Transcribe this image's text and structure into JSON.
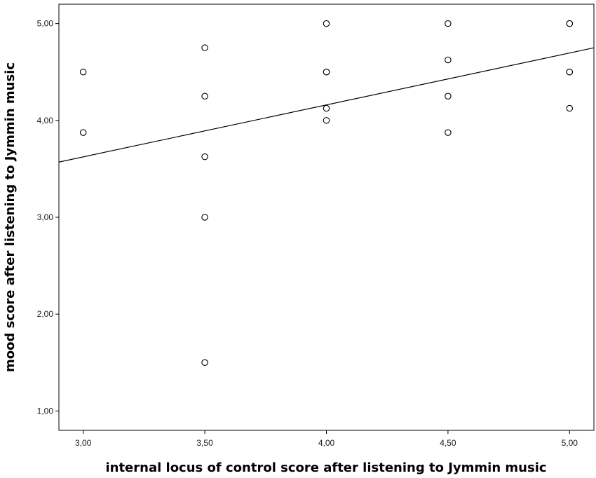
{
  "chart_data": {
    "type": "scatter",
    "xlabel": "internal locus of control score after listening to Jymmin music",
    "ylabel": "mood score after listening to Jymmin music",
    "xlim": [
      2.9,
      5.1
    ],
    "ylim": [
      0.8,
      5.2
    ],
    "x_ticks": [
      {
        "value": 3.0,
        "label": "3,00"
      },
      {
        "value": 3.5,
        "label": "3,50"
      },
      {
        "value": 4.0,
        "label": "4,00"
      },
      {
        "value": 4.5,
        "label": "4,50"
      },
      {
        "value": 5.0,
        "label": "5,00"
      }
    ],
    "y_ticks": [
      {
        "value": 1.0,
        "label": "1,00"
      },
      {
        "value": 2.0,
        "label": "2,00"
      },
      {
        "value": 3.0,
        "label": "3,00"
      },
      {
        "value": 4.0,
        "label": "4,00"
      },
      {
        "value": 5.0,
        "label": "5,00"
      }
    ],
    "grid": false,
    "points": [
      {
        "x": 3.0,
        "y": 4.5
      },
      {
        "x": 3.0,
        "y": 3.875
      },
      {
        "x": 3.5,
        "y": 4.75
      },
      {
        "x": 3.5,
        "y": 4.25
      },
      {
        "x": 3.5,
        "y": 3.625
      },
      {
        "x": 3.5,
        "y": 3.0
      },
      {
        "x": 3.5,
        "y": 1.5
      },
      {
        "x": 4.0,
        "y": 5.0
      },
      {
        "x": 4.0,
        "y": 4.5
      },
      {
        "x": 4.0,
        "y": 4.5
      },
      {
        "x": 4.0,
        "y": 4.125
      },
      {
        "x": 4.0,
        "y": 4.0
      },
      {
        "x": 4.5,
        "y": 5.0
      },
      {
        "x": 4.5,
        "y": 4.625
      },
      {
        "x": 4.5,
        "y": 4.25
      },
      {
        "x": 4.5,
        "y": 3.875
      },
      {
        "x": 5.0,
        "y": 5.0
      },
      {
        "x": 5.0,
        "y": 5.0
      },
      {
        "x": 5.0,
        "y": 4.5
      },
      {
        "x": 5.0,
        "y": 4.5
      },
      {
        "x": 5.0,
        "y": 4.125
      }
    ],
    "fit_line": {
      "x": [
        2.9,
        5.1
      ],
      "y": [
        3.57,
        4.75
      ]
    },
    "colors": {
      "marker_stroke": "#000000",
      "marker_fill": "#ffffff",
      "line": "#000000",
      "axis": "#000000"
    }
  }
}
